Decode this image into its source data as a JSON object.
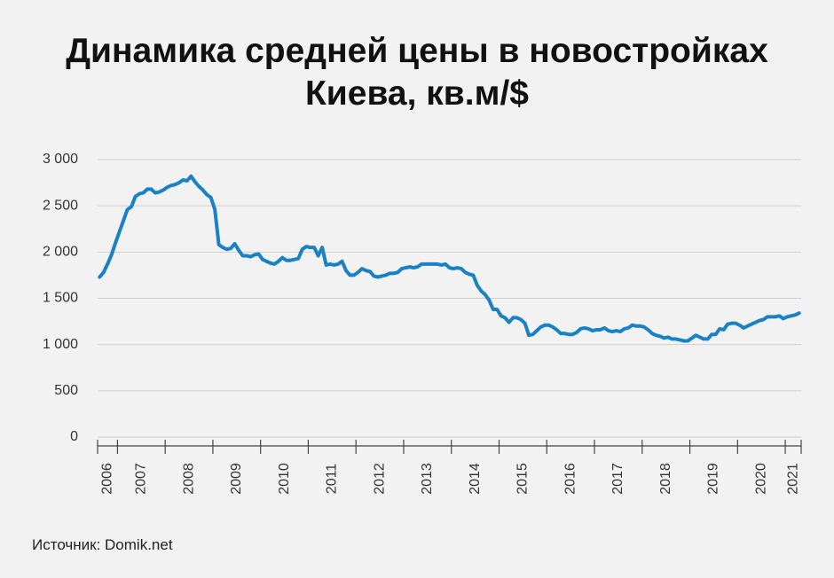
{
  "chart_data": {
    "type": "line",
    "title": "Динамика средней цены в новостройках Киева, кв.м/$",
    "source": "Источник: Domik.net",
    "categories": [
      "2006",
      null,
      null,
      null,
      null,
      "2007",
      null,
      null,
      null,
      null,
      null,
      null,
      null,
      null,
      null,
      null,
      null,
      "2008",
      null,
      null,
      null,
      null,
      null,
      null,
      null,
      null,
      null,
      null,
      null,
      "2009",
      null,
      null,
      null,
      null,
      null,
      null,
      null,
      null,
      null,
      null,
      null,
      "2010",
      null,
      null,
      null,
      null,
      null,
      null,
      null,
      null,
      null,
      null,
      null,
      "2011",
      null,
      null,
      null,
      null,
      null,
      null,
      null,
      null,
      null,
      null,
      null,
      "2012",
      null,
      null,
      null,
      null,
      null,
      null,
      null,
      null,
      null,
      null,
      null,
      "2013",
      null,
      null,
      null,
      null,
      null,
      null,
      null,
      null,
      null,
      null,
      null,
      "2014",
      null,
      null,
      null,
      null,
      null,
      null,
      null,
      null,
      null,
      null,
      null,
      "2015",
      null,
      null,
      null,
      null,
      null,
      null,
      null,
      null,
      null,
      null,
      null,
      "2016",
      null,
      null,
      null,
      null,
      null,
      null,
      null,
      null,
      null,
      null,
      null,
      "2017",
      null,
      null,
      null,
      null,
      null,
      null,
      null,
      null,
      null,
      null,
      null,
      "2018",
      null,
      null,
      null,
      null,
      null,
      null,
      null,
      null,
      null,
      null,
      null,
      "2019",
      null,
      null,
      null,
      null,
      null,
      null,
      null,
      null,
      null,
      null,
      null,
      "2020",
      null,
      null,
      null,
      null,
      null,
      null,
      null,
      null,
      null,
      null,
      null,
      "2021",
      null,
      null,
      null
    ],
    "values": [
      1730,
      1780,
      1870,
      1970,
      2100,
      2220,
      2340,
      2460,
      2490,
      2600,
      2630,
      2640,
      2680,
      2680,
      2640,
      2650,
      2670,
      2700,
      2720,
      2730,
      2750,
      2780,
      2770,
      2820,
      2760,
      2710,
      2670,
      2620,
      2590,
      2460,
      2080,
      2050,
      2030,
      2040,
      2090,
      2020,
      1960,
      1960,
      1950,
      1970,
      1980,
      1920,
      1900,
      1880,
      1870,
      1900,
      1940,
      1910,
      1910,
      1920,
      1930,
      2030,
      2060,
      2050,
      2050,
      1960,
      2050,
      1860,
      1870,
      1860,
      1870,
      1900,
      1800,
      1750,
      1750,
      1780,
      1820,
      1800,
      1790,
      1740,
      1730,
      1740,
      1750,
      1770,
      1770,
      1780,
      1820,
      1830,
      1840,
      1830,
      1840,
      1870,
      1870,
      1870,
      1870,
      1870,
      1860,
      1870,
      1830,
      1820,
      1830,
      1820,
      1780,
      1760,
      1750,
      1640,
      1580,
      1540,
      1480,
      1380,
      1380,
      1310,
      1290,
      1240,
      1290,
      1290,
      1270,
      1230,
      1100,
      1110,
      1150,
      1190,
      1210,
      1210,
      1190,
      1160,
      1120,
      1120,
      1110,
      1110,
      1130,
      1170,
      1180,
      1170,
      1150,
      1160,
      1160,
      1180,
      1150,
      1140,
      1150,
      1140,
      1170,
      1180,
      1210,
      1200,
      1200,
      1190,
      1160,
      1120,
      1100,
      1090,
      1070,
      1080,
      1060,
      1060,
      1050,
      1040,
      1040,
      1070,
      1100,
      1080,
      1060,
      1060,
      1110,
      1110,
      1170,
      1160,
      1220,
      1230,
      1230,
      1210,
      1180,
      1200,
      1220,
      1240,
      1260,
      1270,
      1300,
      1300,
      1300,
      1310,
      1280,
      1300,
      1310,
      1320,
      1340
    ],
    "color": "#1a82c4",
    "ylim": [
      0,
      3000
    ],
    "yticks": [
      0,
      500,
      {
        "value": 1000,
        "label": "1 000"
      },
      {
        "value": 1500,
        "label": "1 500"
      },
      {
        "value": 2000,
        "label": "2 000"
      },
      {
        "value": 2500,
        "label": "2 500"
      },
      {
        "value": 3000,
        "label": "3 000"
      }
    ],
    "grid": true
  }
}
